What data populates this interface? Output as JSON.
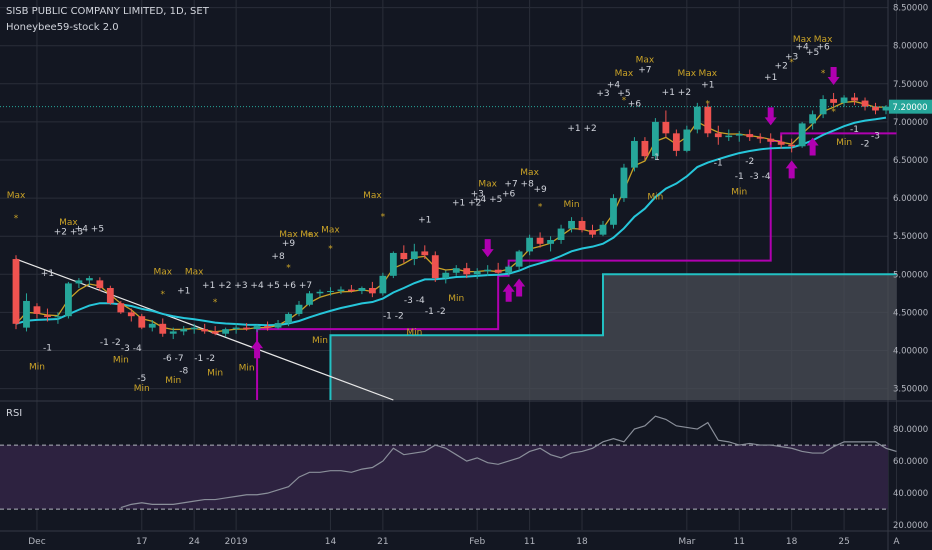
{
  "header": {
    "symbol_line": "SISB PUBLIC COMPANY LIMITED, 1D, SET",
    "indicator_name": "Honeybee59-stock 2.0"
  },
  "rsi_pane": {
    "label": "RSI"
  },
  "colors": {
    "background": "#131722",
    "grid": "#2a2e39",
    "up_candle": "#26a69a",
    "down_candle": "#ef5350",
    "ema_fast": "#c9a227",
    "ema_slow": "#26c6da",
    "signal_line": "#b000b0",
    "support_box_line": "#22c1c3",
    "annotation_text": "#c9a227",
    "rsi_line": "#8a8f9a",
    "rsi_band": "#2d2240",
    "price_label_bg": "#26a69a"
  },
  "chart_data": {
    "type": "candlestick",
    "title": "SISB PUBLIC COMPANY LIMITED, 1D, SET",
    "price_axis_ticks": [
      "3.50000",
      "4.00000",
      "4.50000",
      "5.00000",
      "5.50000",
      "6.00000",
      "6.50000",
      "7.00000",
      "7.50000",
      "8.00000",
      "8.50000"
    ],
    "price_ylim": [
      3.35,
      8.6
    ],
    "last_price_label": "7.20000",
    "last_price": 7.2,
    "x_ticks": [
      {
        "label": "Dec",
        "i": 2
      },
      {
        "label": "17",
        "i": 12
      },
      {
        "label": "24",
        "i": 17
      },
      {
        "label": "2019",
        "i": 21
      },
      {
        "label": "14",
        "i": 30
      },
      {
        "label": "21",
        "i": 35
      },
      {
        "label": "Feb",
        "i": 44
      },
      {
        "label": "11",
        "i": 49
      },
      {
        "label": "18",
        "i": 54
      },
      {
        "label": "Mar",
        "i": 64
      },
      {
        "label": "11",
        "i": 69
      },
      {
        "label": "18",
        "i": 74
      },
      {
        "label": "25",
        "i": 79
      },
      {
        "label": "A",
        "i": 84
      }
    ],
    "candles": [
      [
        5.2,
        5.25,
        4.28,
        4.35
      ],
      [
        4.3,
        4.75,
        4.25,
        4.65
      ],
      [
        4.58,
        4.62,
        4.42,
        4.48
      ],
      [
        4.46,
        4.55,
        4.38,
        4.44
      ],
      [
        4.44,
        4.5,
        4.35,
        4.45
      ],
      [
        4.45,
        4.9,
        4.42,
        4.88
      ],
      [
        4.88,
        4.95,
        4.82,
        4.92
      ],
      [
        4.92,
        4.98,
        4.85,
        4.95
      ],
      [
        4.92,
        4.96,
        4.78,
        4.82
      ],
      [
        4.82,
        4.85,
        4.6,
        4.62
      ],
      [
        4.62,
        4.65,
        4.48,
        4.5
      ],
      [
        4.5,
        4.55,
        4.38,
        4.45
      ],
      [
        4.45,
        4.48,
        4.28,
        4.3
      ],
      [
        4.3,
        4.4,
        4.25,
        4.35
      ],
      [
        4.35,
        4.42,
        4.18,
        4.22
      ],
      [
        4.22,
        4.3,
        4.15,
        4.25
      ],
      [
        4.25,
        4.32,
        4.2,
        4.28
      ],
      [
        4.28,
        4.35,
        4.22,
        4.3
      ],
      [
        4.28,
        4.35,
        4.22,
        4.25
      ],
      [
        4.25,
        4.32,
        4.2,
        4.22
      ],
      [
        4.22,
        4.3,
        4.18,
        4.28
      ],
      [
        4.28,
        4.36,
        4.22,
        4.3
      ],
      [
        4.3,
        4.36,
        4.26,
        4.28
      ],
      [
        4.28,
        4.34,
        4.24,
        4.32
      ],
      [
        4.32,
        4.38,
        4.26,
        4.3
      ],
      [
        4.3,
        4.4,
        4.28,
        4.36
      ],
      [
        4.36,
        4.5,
        4.32,
        4.48
      ],
      [
        4.48,
        4.65,
        4.45,
        4.6
      ],
      [
        4.6,
        4.78,
        4.58,
        4.75
      ],
      [
        4.75,
        4.8,
        4.7,
        4.77
      ],
      [
        4.77,
        4.83,
        4.72,
        4.78
      ],
      [
        4.78,
        4.84,
        4.74,
        4.8
      ],
      [
        4.8,
        4.86,
        4.76,
        4.78
      ],
      [
        4.78,
        4.84,
        4.74,
        4.82
      ],
      [
        4.82,
        4.9,
        4.7,
        4.75
      ],
      [
        4.75,
        5.02,
        4.72,
        4.98
      ],
      [
        4.98,
        5.3,
        4.95,
        5.28
      ],
      [
        5.28,
        5.38,
        5.15,
        5.2
      ],
      [
        5.2,
        5.4,
        5.12,
        5.3
      ],
      [
        5.3,
        5.38,
        5.2,
        5.25
      ],
      [
        5.25,
        5.3,
        4.9,
        4.95
      ],
      [
        4.95,
        5.05,
        4.88,
        5.02
      ],
      [
        5.02,
        5.12,
        4.98,
        5.08
      ],
      [
        5.08,
        5.15,
        4.95,
        5.0
      ],
      [
        5.0,
        5.08,
        4.94,
        5.04
      ],
      [
        5.04,
        5.12,
        4.98,
        5.06
      ],
      [
        5.06,
        5.15,
        5.0,
        5.02
      ],
      [
        5.02,
        5.12,
        4.98,
        5.1
      ],
      [
        5.1,
        5.32,
        5.05,
        5.3
      ],
      [
        5.3,
        5.52,
        5.25,
        5.48
      ],
      [
        5.48,
        5.55,
        5.35,
        5.4
      ],
      [
        5.4,
        5.5,
        5.3,
        5.45
      ],
      [
        5.45,
        5.65,
        5.4,
        5.6
      ],
      [
        5.6,
        5.75,
        5.55,
        5.7
      ],
      [
        5.7,
        5.75,
        5.55,
        5.58
      ],
      [
        5.58,
        5.65,
        5.48,
        5.52
      ],
      [
        5.52,
        5.7,
        5.5,
        5.65
      ],
      [
        5.65,
        6.05,
        5.6,
        6.0
      ],
      [
        6.0,
        6.45,
        5.95,
        6.4
      ],
      [
        6.4,
        6.8,
        6.35,
        6.75
      ],
      [
        6.75,
        6.8,
        6.5,
        6.55
      ],
      [
        6.55,
        7.05,
        6.5,
        7.0
      ],
      [
        7.0,
        7.15,
        6.8,
        6.85
      ],
      [
        6.85,
        6.9,
        6.55,
        6.62
      ],
      [
        6.62,
        6.95,
        6.6,
        6.9
      ],
      [
        6.9,
        7.25,
        6.85,
        7.2
      ],
      [
        7.2,
        7.25,
        6.8,
        6.85
      ],
      [
        6.85,
        6.95,
        6.7,
        6.8
      ],
      [
        6.8,
        6.9,
        6.75,
        6.82
      ],
      [
        6.82,
        6.88,
        6.74,
        6.84
      ],
      [
        6.84,
        6.9,
        6.75,
        6.8
      ],
      [
        6.8,
        6.85,
        6.72,
        6.78
      ],
      [
        6.78,
        6.85,
        6.7,
        6.74
      ],
      [
        6.74,
        6.82,
        6.65,
        6.7
      ],
      [
        6.7,
        6.78,
        6.6,
        6.68
      ],
      [
        6.68,
        7.0,
        6.66,
        6.98
      ],
      [
        6.98,
        7.15,
        6.9,
        7.1
      ],
      [
        7.1,
        7.35,
        7.05,
        7.3
      ],
      [
        7.3,
        7.38,
        7.2,
        7.25
      ],
      [
        7.25,
        7.35,
        7.2,
        7.32
      ],
      [
        7.32,
        7.38,
        7.22,
        7.28
      ],
      [
        7.28,
        7.32,
        7.15,
        7.2
      ],
      [
        7.2,
        7.25,
        7.1,
        7.15
      ],
      [
        7.15,
        7.22,
        7.1,
        7.2
      ]
    ],
    "support_steps": [
      [
        30,
        3.35
      ],
      [
        30,
        4.2
      ],
      [
        56,
        4.2
      ],
      [
        56,
        5.0
      ],
      [
        84,
        5.0
      ]
    ],
    "signal_steps": [
      [
        23,
        3.35
      ],
      [
        23,
        4.28
      ],
      [
        46,
        4.28
      ],
      [
        46,
        4.98
      ],
      [
        47,
        4.98
      ],
      [
        47,
        5.18
      ],
      [
        72,
        5.18
      ],
      [
        72,
        6.75
      ],
      [
        73,
        6.75
      ],
      [
        73,
        6.85
      ],
      [
        84,
        6.85
      ]
    ],
    "trendline": [
      [
        0,
        5.2
      ],
      [
        36,
        3.35
      ]
    ],
    "buy_arrows": [
      23,
      47,
      48,
      74,
      76
    ],
    "sell_arrows": [
      45,
      72,
      78
    ],
    "labels": [
      {
        "t": "Max",
        "i": 0,
        "p": 6.0
      },
      {
        "t": "*",
        "i": 0,
        "p": 5.7
      },
      {
        "t": "+1",
        "i": 3,
        "p": 4.98
      },
      {
        "t": "-1",
        "i": 3,
        "p": 4.0
      },
      {
        "t": "Min",
        "i": 2,
        "p": 3.75
      },
      {
        "t": "Max",
        "i": 5,
        "p": 5.65
      },
      {
        "t": "+2 +3",
        "i": 5,
        "p": 5.52
      },
      {
        "t": "+4 +5",
        "i": 7,
        "p": 5.56
      },
      {
        "t": "-1 -2",
        "i": 9,
        "p": 4.07
      },
      {
        "t": "-3 -4",
        "i": 11,
        "p": 3.99
      },
      {
        "t": "Min",
        "i": 10,
        "p": 3.84
      },
      {
        "t": "-5",
        "i": 12,
        "p": 3.6
      },
      {
        "t": "Min",
        "i": 12,
        "p": 3.47
      },
      {
        "t": "Max",
        "i": 14,
        "p": 5.0
      },
      {
        "t": "*",
        "i": 14,
        "p": 4.7
      },
      {
        "t": "-6 -7",
        "i": 15,
        "p": 3.86
      },
      {
        "t": "-8",
        "i": 16,
        "p": 3.7
      },
      {
        "t": "Min",
        "i": 15,
        "p": 3.57
      },
      {
        "t": "Max",
        "i": 17,
        "p": 5.0
      },
      {
        "t": "+1",
        "i": 16,
        "p": 4.75
      },
      {
        "t": "-1 -2",
        "i": 18,
        "p": 3.86
      },
      {
        "t": "Min",
        "i": 19,
        "p": 3.67
      },
      {
        "t": "*",
        "i": 19,
        "p": 4.6
      },
      {
        "t": "+1 +2 +3 +4 +5 +6 +7",
        "i": 23,
        "p": 4.82
      },
      {
        "t": "+8",
        "i": 25,
        "p": 5.2
      },
      {
        "t": "*",
        "i": 26,
        "p": 5.05
      },
      {
        "t": "Min",
        "i": 22,
        "p": 3.74
      },
      {
        "t": "Max",
        "i": 26,
        "p": 5.49
      },
      {
        "t": "+9",
        "i": 26,
        "p": 5.37
      },
      {
        "t": "*",
        "i": 28,
        "p": 5.47
      },
      {
        "t": "Max",
        "i": 28,
        "p": 5.49
      },
      {
        "t": "Max",
        "i": 30,
        "p": 5.55
      },
      {
        "t": "*",
        "i": 30,
        "p": 5.3
      },
      {
        "t": "Min",
        "i": 29,
        "p": 4.1
      },
      {
        "t": "Max",
        "i": 34,
        "p": 6.0
      },
      {
        "t": "*",
        "i": 35,
        "p": 5.72
      },
      {
        "t": "-1 -2",
        "i": 36,
        "p": 4.42
      },
      {
        "t": "-3 -4",
        "i": 38,
        "p": 4.62
      },
      {
        "t": "Min",
        "i": 38,
        "p": 4.2
      },
      {
        "t": "-1 -2",
        "i": 40,
        "p": 4.48
      },
      {
        "t": "+1",
        "i": 39,
        "p": 5.68
      },
      {
        "t": "Min",
        "i": 42,
        "p": 4.65
      },
      {
        "t": "+1 +2",
        "i": 43,
        "p": 5.9
      },
      {
        "t": "+3",
        "i": 44,
        "p": 6.02
      },
      {
        "t": "Max",
        "i": 45,
        "p": 6.15
      },
      {
        "t": "+4 +5",
        "i": 45,
        "p": 5.95
      },
      {
        "t": "+6",
        "i": 47,
        "p": 6.02
      },
      {
        "t": "+7 +8",
        "i": 48,
        "p": 6.15
      },
      {
        "t": "+9",
        "i": 50,
        "p": 6.08
      },
      {
        "t": "*",
        "i": 50,
        "p": 5.85
      },
      {
        "t": "Max",
        "i": 49,
        "p": 6.3
      },
      {
        "t": "Min",
        "i": 53,
        "p": 5.88
      },
      {
        "t": "+1 +2",
        "i": 54,
        "p": 6.88
      },
      {
        "t": "+3",
        "i": 56,
        "p": 7.34
      },
      {
        "t": "+4",
        "i": 57,
        "p": 7.45
      },
      {
        "t": "Max",
        "i": 58,
        "p": 7.6
      },
      {
        "t": "+5",
        "i": 58,
        "p": 7.34
      },
      {
        "t": "*",
        "i": 58,
        "p": 7.25
      },
      {
        "t": "+6",
        "i": 59,
        "p": 7.2
      },
      {
        "t": "+7",
        "i": 60,
        "p": 7.65
      },
      {
        "t": "Max",
        "i": 60,
        "p": 7.78
      },
      {
        "t": "-1",
        "i": 61,
        "p": 6.5
      },
      {
        "t": "Min",
        "i": 61,
        "p": 5.98
      },
      {
        "t": "+1 +2",
        "i": 63,
        "p": 7.35
      },
      {
        "t": "Max",
        "i": 64,
        "p": 7.6
      },
      {
        "t": "+1",
        "i": 66,
        "p": 7.45
      },
      {
        "t": "*",
        "i": 66,
        "p": 7.2
      },
      {
        "t": "Max",
        "i": 66,
        "p": 7.6
      },
      {
        "t": "-1",
        "i": 67,
        "p": 6.43
      },
      {
        "t": "-1",
        "i": 69,
        "p": 6.25
      },
      {
        "t": "-2",
        "i": 70,
        "p": 6.45
      },
      {
        "t": "-3 -4",
        "i": 71,
        "p": 6.25
      },
      {
        "t": "Min",
        "i": 69,
        "p": 6.05
      },
      {
        "t": "+1",
        "i": 72,
        "p": 7.55
      },
      {
        "t": "+2",
        "i": 73,
        "p": 7.7
      },
      {
        "t": "+3",
        "i": 74,
        "p": 7.82
      },
      {
        "t": "+4",
        "i": 75,
        "p": 7.95
      },
      {
        "t": "Max",
        "i": 75,
        "p": 8.05
      },
      {
        "t": "+5",
        "i": 76,
        "p": 7.88
      },
      {
        "t": "+6",
        "i": 77,
        "p": 7.95
      },
      {
        "t": "Max",
        "i": 77,
        "p": 8.05
      },
      {
        "t": "*",
        "i": 74,
        "p": 7.75
      },
      {
        "t": "*",
        "i": 77,
        "p": 7.6
      },
      {
        "t": "*",
        "i": 78,
        "p": 7.1
      },
      {
        "t": "-1",
        "i": 80,
        "p": 6.87
      },
      {
        "t": "-2",
        "i": 81,
        "p": 6.68
      },
      {
        "t": "-3",
        "i": 82,
        "p": 6.78
      },
      {
        "t": "Min",
        "i": 79,
        "p": 6.7
      }
    ],
    "rsi": {
      "ticks": [
        "20.0000",
        "40.0000",
        "60.0000",
        "80.0000"
      ],
      "ylim": [
        17,
        95
      ],
      "upper_band": 70,
      "lower_band": 30,
      "start_index": 10,
      "values": [
        31,
        33,
        34,
        33,
        33,
        33,
        34,
        35,
        36,
        36,
        37,
        38,
        39,
        39,
        40,
        42,
        44,
        50,
        53,
        53,
        54,
        54,
        53,
        55,
        56,
        60,
        68,
        64,
        65,
        66,
        70,
        68,
        64,
        60,
        62,
        59,
        58,
        60,
        62,
        66,
        68,
        64,
        62,
        65,
        66,
        68,
        72,
        74,
        72,
        80,
        82,
        88,
        86,
        82,
        81,
        80,
        84,
        73,
        72,
        70,
        71,
        70,
        70,
        69,
        68,
        66,
        65,
        65,
        69,
        72,
        72,
        72,
        72,
        68,
        66
      ]
    }
  }
}
